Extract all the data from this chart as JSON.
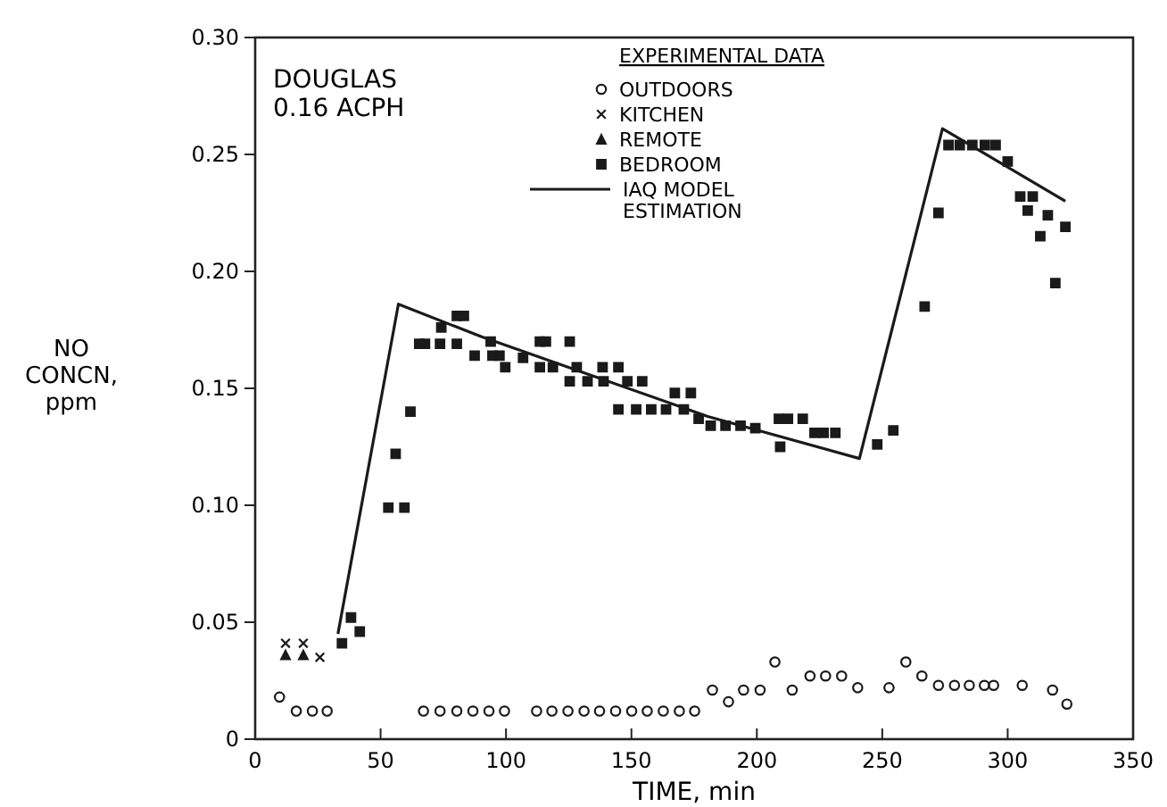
{
  "chart_data": {
    "type": "scatter",
    "xlabel": "TIME, min",
    "ylabel": "NO CONCN, ppm",
    "legend_title": "EXPERIMENTAL DATA",
    "legend": "top",
    "grid": false,
    "annotations": [
      "DOUGLAS",
      "0.16 ACPH"
    ],
    "xlim": [
      0,
      350
    ],
    "xticks": [
      0,
      50,
      100,
      150,
      200,
      250,
      300,
      350
    ],
    "ylim": [
      0,
      0.3
    ],
    "yticks": [
      0,
      {
        "value": 0.05,
        "label": "0.05"
      },
      {
        "value": 0.1,
        "label": "0.10"
      },
      {
        "value": 0.15,
        "label": "0.15"
      },
      {
        "value": 0.2,
        "label": "0.20"
      },
      {
        "value": 0.25,
        "label": "0.25"
      },
      {
        "value": 0.3,
        "label": "0.30"
      }
    ],
    "series": [
      {
        "name": "OUTDOORS",
        "color": "#1a1a1a",
        "marker": "circle",
        "x": [
          9.7,
          16.4,
          22.8,
          28.7,
          67.1,
          73.7,
          80.4,
          86.8,
          93.2,
          99.4,
          112.2,
          118.3,
          124.7,
          131.1,
          137.3,
          143.7,
          150.1,
          156.3,
          162.7,
          169.1,
          175.2,
          182.3,
          188.7,
          194.7,
          201.3,
          207.2,
          214.1,
          221.2,
          227.4,
          233.8,
          240.2,
          252.7,
          259.4,
          265.8,
          272.4,
          278.8,
          284.7,
          290.7,
          294.4,
          305.8,
          317.9,
          323.6
        ],
        "values": [
          0.018,
          0.012,
          0.012,
          0.012,
          0.012,
          0.012,
          0.012,
          0.012,
          0.012,
          0.012,
          0.012,
          0.012,
          0.012,
          0.012,
          0.012,
          0.012,
          0.012,
          0.012,
          0.012,
          0.012,
          0.012,
          0.021,
          0.016,
          0.021,
          0.021,
          0.033,
          0.021,
          0.027,
          0.027,
          0.027,
          0.022,
          0.022,
          0.033,
          0.027,
          0.023,
          0.023,
          0.023,
          0.023,
          0.023,
          0.023,
          0.021,
          0.015
        ]
      },
      {
        "name": "KITCHEN",
        "color": "#1a1a1a",
        "marker": "cross",
        "x": [
          12.1,
          19.2,
          25.8
        ],
        "values": [
          0.041,
          0.041,
          0.035
        ]
      },
      {
        "name": "REMOTE",
        "color": "#1a1a1a",
        "marker": "triangle",
        "x": [
          12.1,
          19.2
        ],
        "values": [
          0.036,
          0.036
        ]
      },
      {
        "name": "BEDROOM",
        "color": "#1a1a1a",
        "marker": "square",
        "x": [
          34.6,
          38.2,
          41.7,
          53.1,
          56.0,
          59.5,
          61.9,
          65.4,
          67.7,
          73.7,
          74.2,
          80.4,
          80.4,
          83.2,
          87.5,
          93.9,
          94.6,
          97.4,
          99.7,
          106.8,
          113.5,
          115.9,
          113.5,
          118.7,
          125.4,
          128.2,
          125.4,
          132.5,
          138.9,
          138.5,
          144.8,
          148.4,
          154.3,
          144.8,
          151.9,
          157.9,
          163.8,
          170.9,
          167.3,
          173.7,
          176.8,
          181.6,
          187.5,
          193.5,
          199.4,
          208.8,
          212.4,
          218.3,
          209.3,
          223.0,
          226.6,
          231.3,
          248.0,
          254.4,
          266.9,
          272.4,
          276.4,
          280.9,
          285.9,
          290.9,
          295.2,
          300,
          305,
          308,
          310,
          313,
          316,
          319,
          323
        ],
        "values": [
          0.041,
          0.052,
          0.046,
          0.099,
          0.122,
          0.099,
          0.14,
          0.169,
          0.169,
          0.169,
          0.176,
          0.169,
          0.181,
          0.181,
          0.164,
          0.17,
          0.164,
          0.164,
          0.159,
          0.163,
          0.17,
          0.17,
          0.159,
          0.159,
          0.17,
          0.159,
          0.153,
          0.153,
          0.153,
          0.159,
          0.159,
          0.153,
          0.153,
          0.141,
          0.141,
          0.141,
          0.141,
          0.141,
          0.148,
          0.148,
          0.137,
          0.134,
          0.134,
          0.134,
          0.133,
          0.137,
          0.137,
          0.137,
          0.125,
          0.131,
          0.131,
          0.131,
          0.126,
          0.132,
          0.185,
          0.225,
          0.254,
          0.254,
          0.254,
          0.254,
          0.254,
          0.247,
          0.232,
          0.226,
          0.232,
          0.215,
          0.224,
          0.195,
          0.219
        ]
      },
      {
        "name": "IAQ MODEL ESTIMATION",
        "type": "line",
        "color": "#1a1a1a",
        "x": [
          33,
          57.1,
          90.3,
          180.4,
          240.9,
          274.0,
          323
        ],
        "values": [
          0.045,
          0.186,
          0.172,
          0.138,
          0.12,
          0.261,
          0.23
        ]
      }
    ]
  }
}
